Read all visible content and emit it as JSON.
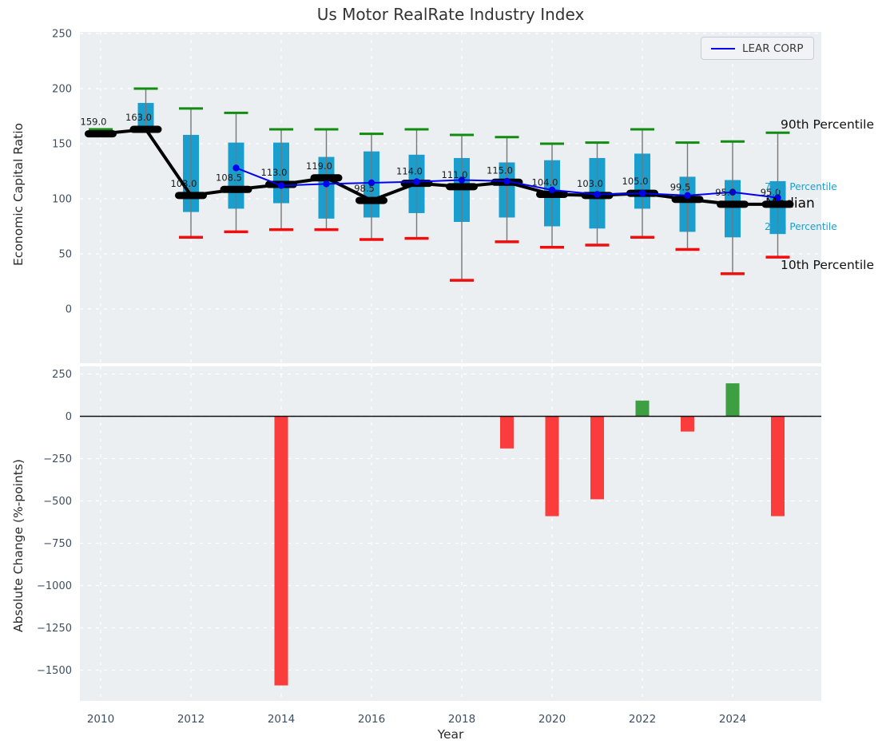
{
  "title": "Us Motor RealRate Industry Index",
  "legend": {
    "label": "LEAR CORP"
  },
  "annotations": {
    "p90": "90th Percentile",
    "p75": "75th Percentile",
    "median": "Median",
    "p25": "25th Percentile",
    "p10": "10th Percentile"
  },
  "colors": {
    "panel_bg": "#ebeff1",
    "grid": "#ffffff",
    "box": "#1a9ecd",
    "cap_high": "#118c11",
    "cap_low": "#f20d0d",
    "whisker": "#777777",
    "median_line": "#000000",
    "lear_line": "#0000ee",
    "bar_pos": "#3d9e42",
    "bar_neg": "#fa3c3c",
    "tick": "#3d4f63",
    "label_text": "#1a1a1a"
  },
  "chart_data": [
    {
      "type": "box",
      "title": "Us Motor RealRate Industry Index",
      "ylabel": "Economic Capital Ratio",
      "ylim": [
        -49,
        251
      ],
      "grid": true,
      "legend_position": "upper right",
      "ytick_values": [
        250,
        200,
        150,
        100,
        50,
        0
      ],
      "ytick_labels": [
        "250",
        "200",
        "150",
        "100",
        "50",
        "0"
      ],
      "years": [
        2010,
        2011,
        2012,
        2013,
        2014,
        2015,
        2016,
        2017,
        2018,
        2019,
        2020,
        2021,
        2022,
        2023,
        2024,
        2025
      ],
      "p90": [
        163,
        200,
        182,
        178,
        163,
        163,
        159,
        163,
        158,
        156,
        150,
        151,
        163,
        151,
        152,
        160
      ],
      "p75": [
        null,
        187,
        158,
        151,
        151,
        138,
        143,
        140,
        137,
        133,
        135,
        137,
        141,
        120,
        117,
        116
      ],
      "median": [
        159,
        163,
        103,
        108.5,
        113,
        119,
        98.5,
        114,
        111,
        115,
        104,
        103,
        105,
        99.5,
        95,
        95
      ],
      "p25": [
        null,
        163,
        88,
        91,
        96,
        82,
        83,
        87,
        79,
        83,
        75,
        73,
        91,
        70,
        65,
        68
      ],
      "p10": [
        null,
        null,
        65,
        70,
        72,
        72,
        63,
        64,
        26,
        61,
        56,
        58,
        65,
        54,
        32,
        47
      ],
      "median_labels": [
        "159.0",
        "163.0",
        "103.0",
        "108.5",
        "113.0",
        "119.0",
        "98.5",
        "114.0",
        "111.0",
        "115.0",
        "104.0",
        "103.0",
        "105.0",
        "99.5",
        "95.0",
        "95.0"
      ],
      "series": [
        {
          "name": "LEAR CORP",
          "values": [
            null,
            null,
            null,
            128,
            112,
            113.5,
            114.5,
            115.5,
            117,
            116,
            108,
            104,
            105,
            103,
            106,
            101
          ]
        }
      ]
    },
    {
      "type": "bar",
      "ylabel": "Absolute Change (%-points)",
      "xlabel": "Year",
      "ylim": [
        -1680,
        295
      ],
      "grid": true,
      "ytick_values": [
        250,
        0,
        -250,
        -500,
        -750,
        -1000,
        -1250,
        -1500
      ],
      "ytick_labels": [
        "250",
        "0",
        "−250",
        "−500",
        "−750",
        "−1000",
        "−1250",
        "−1500"
      ],
      "xtick_values": [
        2010,
        2012,
        2014,
        2016,
        2018,
        2020,
        2022,
        2024
      ],
      "xtick_labels": [
        "2010",
        "2012",
        "2014",
        "2016",
        "2018",
        "2020",
        "2022",
        "2024"
      ],
      "categories": [
        2010,
        2011,
        2012,
        2013,
        2014,
        2015,
        2016,
        2017,
        2018,
        2019,
        2020,
        2021,
        2022,
        2023,
        2024,
        2025
      ],
      "values": [
        null,
        null,
        null,
        null,
        -1590,
        null,
        null,
        null,
        null,
        -190,
        -590,
        -490,
        93,
        -90,
        195,
        -590
      ]
    }
  ]
}
